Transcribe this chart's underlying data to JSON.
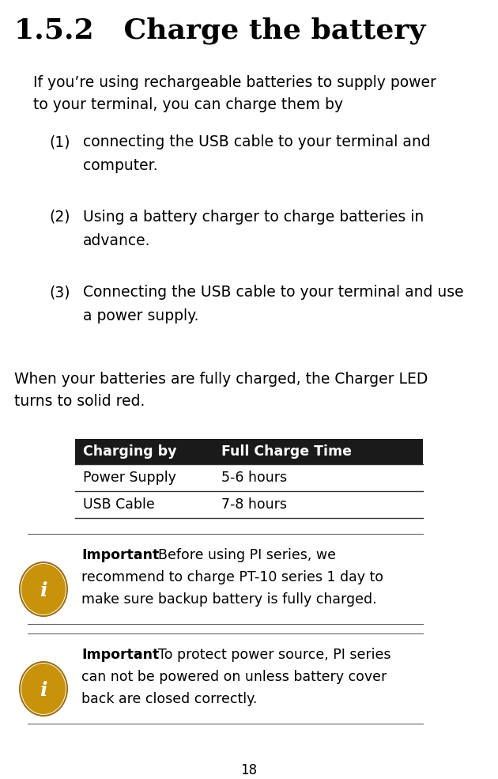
{
  "title": "1.5.2   Charge the battery",
  "body_text_1a": "If you’re using rechargeable batteries to supply power",
  "body_text_1b": "to your terminal, you can charge them by",
  "list_items": [
    [
      "(1)",
      "connecting the USB cable to your terminal and",
      "computer."
    ],
    [
      "(2)",
      "Using a battery charger to charge batteries in",
      "advance."
    ],
    [
      "(3)",
      "Connecting the USB cable to your terminal and use",
      "a power supply."
    ]
  ],
  "body_text_2a": "When your batteries are fully charged, the Charger LED",
  "body_text_2b": "turns to solid red.",
  "table_header": [
    "Charging by",
    "Full Charge Time"
  ],
  "table_rows": [
    [
      "Power Supply",
      "5-6 hours"
    ],
    [
      "USB Cable",
      "7-8 hours"
    ]
  ],
  "note1_label": "Important",
  "note1_lines": [
    "Before using PI series, we",
    "recommend to charge PT-10 series 1 day to",
    "make sure backup battery is fully charged."
  ],
  "note2_label": "Important",
  "note2_lines": [
    "To protect power source, PI series",
    "can not be powered on unless battery cover",
    "back are closed correctly."
  ],
  "page_number": "18",
  "bg_color": "#ffffff",
  "text_color": "#000000",
  "table_header_bg": "#1a1a1a",
  "table_header_fg": "#ffffff",
  "icon_color": "#c8920a",
  "icon_text_color": "#ffffff",
  "divider_color": "#666666",
  "table_divider_color": "#333333"
}
